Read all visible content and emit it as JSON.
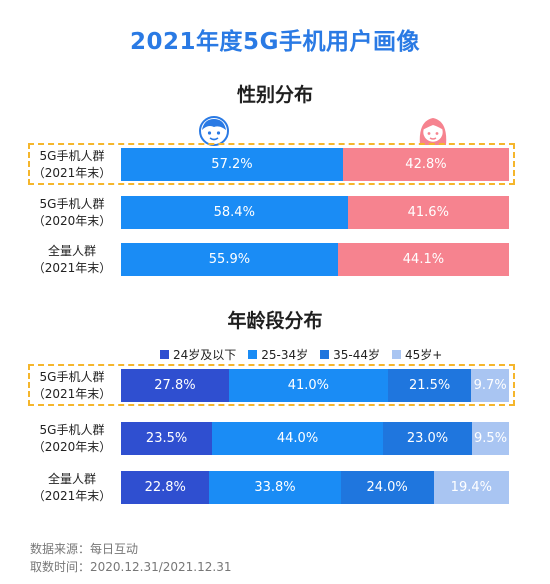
{
  "title": "2021年度5G手机用户画像",
  "gender": {
    "title": "性别分布",
    "rows": [
      {
        "label_line1": "5G手机人群",
        "label_line2": "（2021年末）",
        "male": "57.2%",
        "female": "42.8%",
        "male_value": 57.2,
        "female_value": 42.8
      },
      {
        "label_line1": "5G手机人群",
        "label_line2": "（2020年末）",
        "male": "58.4%",
        "female": "41.6%",
        "male_value": 58.4,
        "female_value": 41.6
      },
      {
        "label_line1": "全量人群",
        "label_line2": "（2021年末）",
        "male": "55.9%",
        "female": "44.1%",
        "male_value": 55.9,
        "female_value": 44.1
      }
    ],
    "colors": {
      "male": "#1a8cf5",
      "female": "#f6838f"
    }
  },
  "age": {
    "title": "年龄段分布",
    "legend": [
      "24岁及以下",
      "25-34岁",
      "35-44岁",
      "45岁+"
    ],
    "colors": [
      "#2f4fd0",
      "#1a8cf5",
      "#1f76de",
      "#a9c5f2"
    ],
    "rows": [
      {
        "label_line1": "5G手机人群",
        "label_line2": "（2021年末）",
        "values": [
          27.8,
          41.0,
          21.5,
          9.7
        ],
        "labels": [
          "27.8%",
          "41.0%",
          "21.5%",
          "9.7%"
        ]
      },
      {
        "label_line1": "5G手机人群",
        "label_line2": "（2020年末）",
        "values": [
          23.5,
          44.0,
          23.0,
          9.5
        ],
        "labels": [
          "23.5%",
          "44.0%",
          "23.0%",
          "9.5%"
        ]
      },
      {
        "label_line1": "全量人群",
        "label_line2": "（2021年末）",
        "values": [
          22.8,
          33.8,
          24.0,
          19.4
        ],
        "labels": [
          "22.8%",
          "33.8%",
          "24.0%",
          "19.4%"
        ]
      }
    ]
  },
  "source": {
    "line1": "数据来源：每日互动",
    "line2": "取数时间：2020.12.31/2021.12.31"
  },
  "chart_data": [
    {
      "type": "bar",
      "title": "性别分布",
      "categories": [
        "5G手机人群（2021年末）",
        "5G手机人群（2020年末）",
        "全量人群（2021年末）"
      ],
      "series": [
        {
          "values": [
            57.2,
            58.4,
            55.9
          ]
        },
        {
          "values": [
            42.8,
            41.6,
            44.1
          ]
        }
      ],
      "stacked": true,
      "orientation": "horizontal",
      "unit": "%"
    },
    {
      "type": "bar",
      "title": "年龄段分布",
      "categories": [
        "5G手机人群（2021年末）",
        "5G手机人群（2020年末）",
        "全量人群（2021年末）"
      ],
      "series": [
        {
          "name": "24岁及以下",
          "values": [
            27.8,
            23.5,
            22.8
          ]
        },
        {
          "name": "25-34岁",
          "values": [
            41.0,
            44.0,
            33.8
          ]
        },
        {
          "name": "35-44岁",
          "values": [
            21.5,
            23.0,
            24.0
          ]
        },
        {
          "name": "45岁+",
          "values": [
            9.7,
            9.5,
            19.4
          ]
        }
      ],
      "stacked": true,
      "orientation": "horizontal",
      "legend": "top",
      "unit": "%"
    }
  ]
}
